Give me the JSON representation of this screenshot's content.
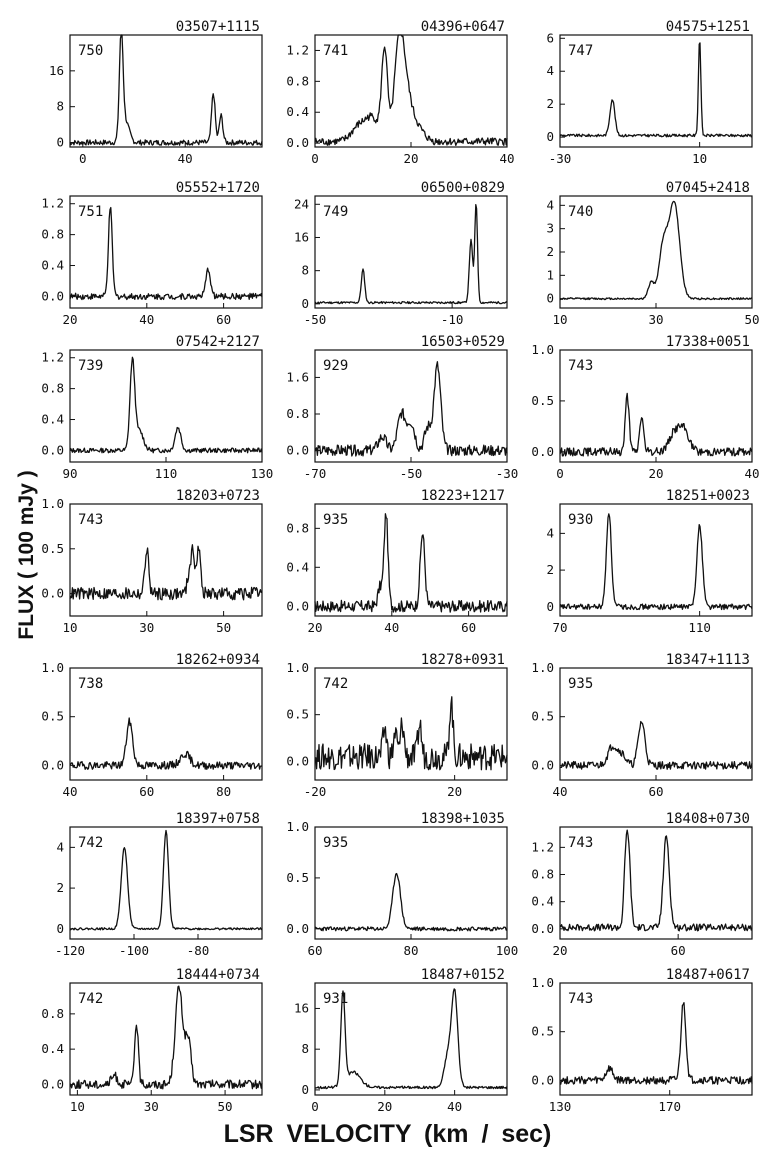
{
  "figure": {
    "ylabel": "FLUX ( 100 mJy )",
    "xlabel": "LSR   VELOCITY (km / sec)"
  },
  "chart_data": [
    {
      "type": "line",
      "title": "03507+1115",
      "label": "750",
      "xlim": [
        -5,
        70
      ],
      "ylim": [
        -1,
        24
      ],
      "xticks": [
        0,
        40
      ],
      "yticks": [
        0,
        8,
        16
      ],
      "peaks": [
        {
          "x": 15,
          "h": 23,
          "w": 0.7
        },
        {
          "x": 16.5,
          "h": 5,
          "w": 1.5
        },
        {
          "x": 51,
          "h": 11,
          "w": 0.7
        },
        {
          "x": 54,
          "h": 6,
          "w": 0.7
        }
      ],
      "noise": 0.6,
      "base": 0
    },
    {
      "type": "line",
      "title": "04396+0647",
      "label": "741",
      "xlim": [
        0,
        40
      ],
      "ylim": [
        -0.05,
        1.4
      ],
      "xticks": [
        0,
        20,
        40
      ],
      "yticks": [
        0.0,
        0.4,
        0.8,
        1.2
      ],
      "peaks": [
        {
          "x": 14.5,
          "h": 1.15,
          "w": 0.6
        },
        {
          "x": 17.5,
          "h": 1.1,
          "w": 1.0
        },
        {
          "x": 18.8,
          "h": 0.55,
          "w": 1.2
        },
        {
          "x": 12,
          "h": 0.3,
          "w": 1.5
        },
        {
          "x": 9,
          "h": 0.18,
          "w": 1.5
        },
        {
          "x": 21,
          "h": 0.2,
          "w": 1.5
        }
      ],
      "noise": 0.05,
      "base": 0.02
    },
    {
      "type": "line",
      "title": "04575+1251",
      "label": "747",
      "xlim": [
        -30,
        25
      ],
      "ylim": [
        -0.6,
        6.2
      ],
      "xticks": [
        -30,
        10
      ],
      "yticks": [
        0,
        2,
        4,
        6
      ],
      "peaks": [
        {
          "x": -15,
          "h": 2.2,
          "w": 0.7
        },
        {
          "x": 10,
          "h": 5.9,
          "w": 0.35
        }
      ],
      "noise": 0.08,
      "base": 0.1
    },
    {
      "type": "line",
      "title": "05552+1720",
      "label": "751",
      "xlim": [
        20,
        70
      ],
      "ylim": [
        -0.15,
        1.3
      ],
      "xticks": [
        20,
        40,
        60
      ],
      "yticks": [
        0.0,
        0.4,
        0.8,
        1.2
      ],
      "peaks": [
        {
          "x": 30.5,
          "h": 1.15,
          "w": 0.5
        },
        {
          "x": 56,
          "h": 0.35,
          "w": 0.6
        }
      ],
      "noise": 0.04,
      "base": 0
    },
    {
      "type": "line",
      "title": "06500+0829",
      "label": "749",
      "xlim": [
        -50,
        6
      ],
      "ylim": [
        -1,
        26
      ],
      "xticks": [
        -50,
        -10
      ],
      "yticks": [
        0,
        8,
        16,
        24
      ],
      "peaks": [
        {
          "x": -36,
          "h": 8,
          "w": 0.5
        },
        {
          "x": -4.5,
          "h": 15,
          "w": 0.5
        },
        {
          "x": -3,
          "h": 24,
          "w": 0.4
        }
      ],
      "noise": 0.25,
      "base": 0.3
    },
    {
      "type": "line",
      "title": "07045+2418",
      "label": "740",
      "xlim": [
        10,
        50
      ],
      "ylim": [
        -0.4,
        4.4
      ],
      "xticks": [
        10,
        30,
        50
      ],
      "yticks": [
        0.0,
        1.0,
        2.0,
        3.0,
        4.0
      ],
      "peaks": [
        {
          "x": 29,
          "h": 0.7,
          "w": 0.6
        },
        {
          "x": 31.5,
          "h": 2.2,
          "w": 0.9
        },
        {
          "x": 33.8,
          "h": 4.1,
          "w": 1.1
        }
      ],
      "noise": 0.04,
      "base": 0
    },
    {
      "type": "line",
      "title": "07542+2127",
      "label": "739",
      "xlim": [
        90,
        130
      ],
      "ylim": [
        -0.15,
        1.3
      ],
      "xticks": [
        90,
        110,
        130
      ],
      "yticks": [
        0.0,
        0.4,
        0.8,
        1.2
      ],
      "peaks": [
        {
          "x": 103,
          "h": 1.15,
          "w": 0.5
        },
        {
          "x": 104.5,
          "h": 0.25,
          "w": 0.8
        },
        {
          "x": 112.5,
          "h": 0.3,
          "w": 0.6
        }
      ],
      "noise": 0.03,
      "base": 0
    },
    {
      "type": "line",
      "title": "16503+0529",
      "label": "929",
      "xlim": [
        -70,
        -30
      ],
      "ylim": [
        -0.25,
        2.2
      ],
      "xticks": [
        -70,
        -50,
        -30
      ],
      "yticks": [
        0.0,
        0.8,
        1.6
      ],
      "peaks": [
        {
          "x": -44.5,
          "h": 1.85,
          "w": 0.7
        },
        {
          "x": -52,
          "h": 0.8,
          "w": 0.8
        },
        {
          "x": -50,
          "h": 0.6,
          "w": 0.8
        },
        {
          "x": -46.5,
          "h": 0.5,
          "w": 0.7
        },
        {
          "x": -56,
          "h": 0.3,
          "w": 0.8
        }
      ],
      "noise": 0.12,
      "base": 0
    },
    {
      "type": "line",
      "title": "17338+0051",
      "label": "743",
      "xlim": [
        0,
        40
      ],
      "ylim": [
        -0.1,
        1.0
      ],
      "xticks": [
        0,
        20,
        40
      ],
      "yticks": [
        0.0,
        0.5,
        1.0
      ],
      "peaks": [
        {
          "x": 14,
          "h": 0.55,
          "w": 0.4
        },
        {
          "x": 17,
          "h": 0.35,
          "w": 0.4
        },
        {
          "x": 24,
          "h": 0.2,
          "w": 1.2
        },
        {
          "x": 26,
          "h": 0.18,
          "w": 1.0
        }
      ],
      "noise": 0.04,
      "base": 0
    },
    {
      "type": "line",
      "title": "18203+0723",
      "label": "743",
      "xlim": [
        10,
        60
      ],
      "ylim": [
        -0.25,
        1.0
      ],
      "xticks": [
        10,
        30,
        50
      ],
      "yticks": [
        0.0,
        0.5,
        1.0
      ],
      "peaks": [
        {
          "x": 30,
          "h": 0.5,
          "w": 0.5
        },
        {
          "x": 42,
          "h": 0.45,
          "w": 0.5
        },
        {
          "x": 43.5,
          "h": 0.5,
          "w": 0.5
        },
        {
          "x": 41,
          "h": 0.2,
          "w": 0.5
        }
      ],
      "noise": 0.07,
      "base": 0
    },
    {
      "type": "line",
      "title": "18223+1217",
      "label": "935",
      "xlim": [
        20,
        70
      ],
      "ylim": [
        -0.1,
        1.05
      ],
      "xticks": [
        20,
        40,
        60
      ],
      "yticks": [
        0.0,
        0.4,
        0.8
      ],
      "peaks": [
        {
          "x": 38.5,
          "h": 0.95,
          "w": 0.5
        },
        {
          "x": 48,
          "h": 0.75,
          "w": 0.6
        },
        {
          "x": 37,
          "h": 0.2,
          "w": 0.6
        }
      ],
      "noise": 0.06,
      "base": 0
    },
    {
      "type": "line",
      "title": "18251+0023",
      "label": "930",
      "xlim": [
        70,
        125
      ],
      "ylim": [
        -0.5,
        5.6
      ],
      "xticks": [
        70,
        110
      ],
      "yticks": [
        0,
        2,
        4
      ],
      "peaks": [
        {
          "x": 84,
          "h": 5.2,
          "w": 0.7
        },
        {
          "x": 110,
          "h": 4.4,
          "w": 0.8
        }
      ],
      "noise": 0.15,
      "base": 0
    },
    {
      "type": "line",
      "title": "18262+0934",
      "label": "738",
      "xlim": [
        40,
        90
      ],
      "ylim": [
        -0.15,
        1.0
      ],
      "xticks": [
        40,
        60,
        80
      ],
      "yticks": [
        0.0,
        0.5,
        1.0
      ],
      "peaks": [
        {
          "x": 55.5,
          "h": 0.45,
          "w": 0.8
        },
        {
          "x": 70,
          "h": 0.12,
          "w": 1.2
        }
      ],
      "noise": 0.04,
      "base": 0
    },
    {
      "type": "line",
      "title": "18278+0931",
      "label": "742",
      "xlim": [
        -20,
        35
      ],
      "ylim": [
        -0.2,
        1.0
      ],
      "xticks": [
        -20,
        20
      ],
      "yticks": [
        0.0,
        0.5,
        1.0
      ],
      "peaks": [
        {
          "x": 19,
          "h": 0.6,
          "w": 0.5
        },
        {
          "x": 0,
          "h": 0.3,
          "w": 0.5
        },
        {
          "x": 5,
          "h": 0.35,
          "w": 0.5
        },
        {
          "x": 10,
          "h": 0.35,
          "w": 0.5
        },
        {
          "x": 3,
          "h": 0.25,
          "w": 0.5
        }
      ],
      "noise": 0.14,
      "base": 0.05
    },
    {
      "type": "line",
      "title": "18347+1113",
      "label": "935",
      "xlim": [
        40,
        80
      ],
      "ylim": [
        -0.15,
        1.0
      ],
      "xticks": [
        40,
        60
      ],
      "yticks": [
        0.0,
        0.5,
        1.0
      ],
      "peaks": [
        {
          "x": 57,
          "h": 0.45,
          "w": 0.7
        },
        {
          "x": 51,
          "h": 0.2,
          "w": 1.0
        },
        {
          "x": 53,
          "h": 0.1,
          "w": 0.8
        }
      ],
      "noise": 0.04,
      "base": 0
    },
    {
      "type": "line",
      "title": "18397+0758",
      "label": "742",
      "xlim": [
        -120,
        -60
      ],
      "ylim": [
        -0.5,
        5.0
      ],
      "xticks": [
        -120,
        -100,
        -80
      ],
      "yticks": [
        0,
        2,
        4
      ],
      "peaks": [
        {
          "x": -103,
          "h": 4.0,
          "w": 1.0
        },
        {
          "x": -90,
          "h": 4.8,
          "w": 0.8
        }
      ],
      "noise": 0.05,
      "base": 0
    },
    {
      "type": "line",
      "title": "18398+1035",
      "label": "935",
      "xlim": [
        60,
        100
      ],
      "ylim": [
        -0.1,
        1.0
      ],
      "xticks": [
        60,
        80,
        100
      ],
      "yticks": [
        0.0,
        0.5,
        1.0
      ],
      "peaks": [
        {
          "x": 77,
          "h": 0.55,
          "w": 0.8
        }
      ],
      "noise": 0.02,
      "base": 0
    },
    {
      "type": "line",
      "title": "18408+0730",
      "label": "743",
      "xlim": [
        20,
        85
      ],
      "ylim": [
        -0.15,
        1.5
      ],
      "xticks": [
        20,
        60
      ],
      "yticks": [
        0.0,
        0.4,
        0.8,
        1.2
      ],
      "peaks": [
        {
          "x": 43,
          "h": 1.3,
          "w": 0.8
        },
        {
          "x": 56,
          "h": 1.35,
          "w": 1.0
        },
        {
          "x": 42,
          "h": 0.4,
          "w": 0.6
        }
      ],
      "noise": 0.05,
      "base": 0.02
    },
    {
      "type": "line",
      "title": "18444+0734",
      "label": "742",
      "xlim": [
        8,
        60
      ],
      "ylim": [
        -0.12,
        1.15
      ],
      "xticks": [
        10,
        30,
        50
      ],
      "yticks": [
        0.0,
        0.4,
        0.8
      ],
      "peaks": [
        {
          "x": 26,
          "h": 0.7,
          "w": 0.5
        },
        {
          "x": 37.5,
          "h": 1.1,
          "w": 1.0
        },
        {
          "x": 40,
          "h": 0.5,
          "w": 0.8
        },
        {
          "x": 20,
          "h": 0.1,
          "w": 0.8
        }
      ],
      "noise": 0.05,
      "base": 0
    },
    {
      "type": "line",
      "title": "18487+0152",
      "label": "931",
      "xlim": [
        0,
        55
      ],
      "ylim": [
        -1,
        21
      ],
      "xticks": [
        0,
        20,
        40
      ],
      "yticks": [
        0,
        8,
        16
      ],
      "peaks": [
        {
          "x": 8,
          "h": 18,
          "w": 0.6
        },
        {
          "x": 11,
          "h": 3,
          "w": 2.0
        },
        {
          "x": 40,
          "h": 18.5,
          "w": 0.9
        },
        {
          "x": 38,
          "h": 6,
          "w": 1.0
        }
      ],
      "noise": 0.25,
      "base": 0.5
    },
    {
      "type": "line",
      "title": "18487+0617",
      "label": "743",
      "xlim": [
        130,
        200
      ],
      "ylim": [
        -0.15,
        1.0
      ],
      "xticks": [
        130,
        170
      ],
      "yticks": [
        0.0,
        0.5,
        1.0
      ],
      "peaks": [
        {
          "x": 175,
          "h": 0.8,
          "w": 0.9
        },
        {
          "x": 148,
          "h": 0.12,
          "w": 1.2
        }
      ],
      "noise": 0.04,
      "base": 0
    }
  ]
}
